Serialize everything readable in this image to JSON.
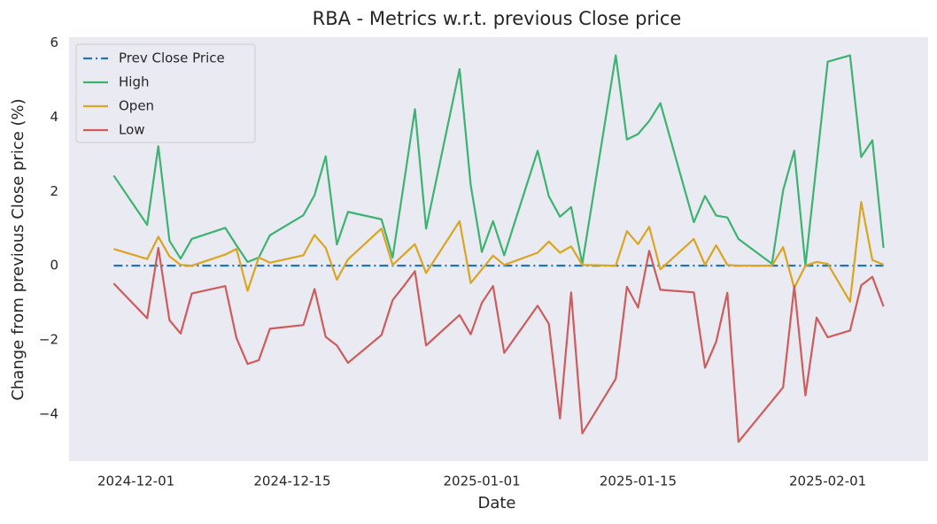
{
  "chart_data": {
    "type": "line",
    "title": "RBA - Metrics w.r.t. previous Close price",
    "xlabel": "Date",
    "ylabel": "Change from previous Close price (%)",
    "x": [
      "2024-11-29",
      "2024-12-02",
      "2024-12-03",
      "2024-12-04",
      "2024-12-05",
      "2024-12-06",
      "2024-12-09",
      "2024-12-10",
      "2024-12-11",
      "2024-12-12",
      "2024-12-13",
      "2024-12-16",
      "2024-12-17",
      "2024-12-18",
      "2024-12-19",
      "2024-12-20",
      "2024-12-23",
      "2024-12-24",
      "2024-12-25",
      "2024-12-26",
      "2024-12-27",
      "2024-12-30",
      "2024-12-31",
      "2025-01-01",
      "2025-01-02",
      "2025-01-03",
      "2025-01-06",
      "2025-01-07",
      "2025-01-08",
      "2025-01-09",
      "2025-01-10",
      "2025-01-13",
      "2025-01-14",
      "2025-01-15",
      "2025-01-16",
      "2025-01-17",
      "2025-01-20",
      "2025-01-21",
      "2025-01-22",
      "2025-01-23",
      "2025-01-24",
      "2025-01-27",
      "2025-01-28",
      "2025-01-29",
      "2025-01-30",
      "2025-01-31",
      "2025-02-01",
      "2025-02-03",
      "2025-02-04",
      "2025-02-05",
      "2025-02-06"
    ],
    "series": [
      {
        "name": "Prev Close Price",
        "color": "#1f77b4",
        "dash": "dashdot",
        "values": [
          0,
          0,
          0,
          0,
          0,
          0,
          0,
          0,
          0,
          0,
          0,
          0,
          0,
          0,
          0,
          0,
          0,
          0,
          0,
          0,
          0,
          0,
          0,
          0,
          0,
          0,
          0,
          0,
          0,
          0,
          0,
          0,
          0,
          0,
          0,
          0,
          0,
          0,
          0,
          0,
          0,
          0,
          0,
          0,
          0,
          0,
          0,
          0,
          0,
          0,
          0
        ]
      },
      {
        "name": "High",
        "color": "#3cb371",
        "values": [
          2.43,
          1.1,
          3.22,
          0.67,
          0.19,
          0.72,
          1.02,
          0.55,
          0.1,
          0.22,
          0.82,
          1.36,
          1.9,
          2.95,
          0.57,
          1.45,
          1.25,
          0.22,
          2.2,
          4.22,
          1.0,
          5.3,
          2.17,
          0.37,
          1.2,
          0.28,
          3.1,
          1.87,
          1.32,
          1.58,
          0.05,
          5.67,
          3.4,
          3.55,
          3.9,
          4.38,
          1.17,
          1.88,
          1.35,
          1.3,
          0.72,
          0.05,
          2.03,
          3.1,
          0.0,
          2.75,
          5.5,
          5.67,
          2.93,
          3.38,
          0.48
        ]
      },
      {
        "name": "Open",
        "color": "#daa520",
        "values": [
          0.45,
          0.18,
          0.78,
          0.25,
          0.02,
          0.0,
          0.3,
          0.45,
          -0.68,
          0.22,
          0.08,
          0.28,
          0.83,
          0.48,
          -0.38,
          0.17,
          1.0,
          0.02,
          0.3,
          0.58,
          -0.2,
          1.2,
          -0.47,
          -0.1,
          0.27,
          0.02,
          0.35,
          0.65,
          0.35,
          0.52,
          0.02,
          0.0,
          0.93,
          0.58,
          1.05,
          -0.1,
          0.72,
          0.02,
          0.55,
          0.02,
          0.0,
          0.0,
          0.5,
          -0.6,
          0.0,
          0.1,
          0.05,
          -0.97,
          1.72,
          0.15,
          0.03
        ]
      },
      {
        "name": "Low",
        "color": "#cd5c5c",
        "values": [
          -0.48,
          -1.42,
          0.48,
          -1.47,
          -1.83,
          -0.75,
          -0.55,
          -1.95,
          -2.65,
          -2.55,
          -1.7,
          -1.6,
          -0.63,
          -1.92,
          -2.15,
          -2.62,
          -1.87,
          -0.93,
          -0.55,
          -0.15,
          -2.15,
          -1.33,
          -1.85,
          -1.0,
          -0.55,
          -2.35,
          -1.08,
          -1.57,
          -4.12,
          -0.72,
          -4.52,
          -3.05,
          -0.57,
          -1.13,
          0.4,
          -0.65,
          -0.72,
          -2.75,
          -2.05,
          -0.73,
          -4.75,
          -3.65,
          -3.28,
          -0.55,
          -3.5,
          -1.4,
          -1.93,
          -1.75,
          -0.53,
          -0.3,
          -1.1
        ]
      }
    ],
    "xlim": [
      "2024-11-25",
      "2025-02-10"
    ],
    "xticks": [
      "2024-12-01",
      "2024-12-15",
      "2025-01-01",
      "2025-01-15",
      "2025-02-01"
    ],
    "ylim": [
      -5.27,
      6.16
    ],
    "yticks": [
      {
        "value": -4,
        "label": "−4"
      },
      {
        "value": -2,
        "label": "−2"
      },
      0,
      2,
      4,
      6
    ],
    "grid": false,
    "legend": "upper left"
  }
}
